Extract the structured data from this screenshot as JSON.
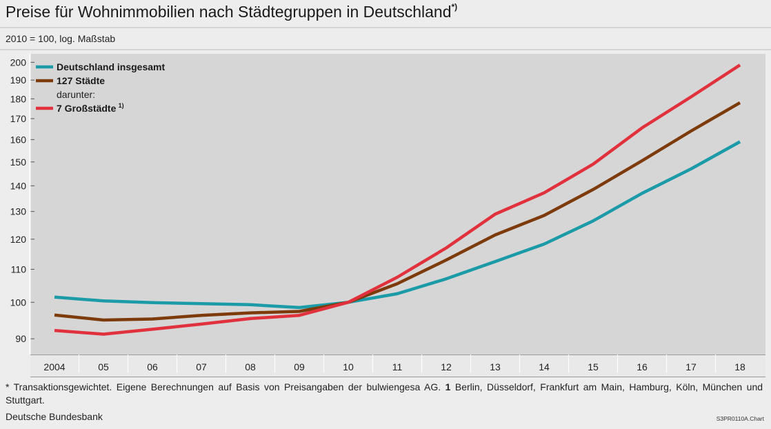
{
  "title": "Preise für Wohnimmobilien nach Städtegruppen in Deutschland",
  "title_marker": "*)",
  "subtitle": "2010 = 100, log. Maßstab",
  "chart_data": {
    "type": "line",
    "title": "Preise für Wohnimmobilien nach Städtegruppen in Deutschland",
    "ylabel": "2010 = 100, log. Maßstab",
    "yscale": "log",
    "ylim": [
      86,
      205
    ],
    "yticks": [
      90,
      100,
      110,
      120,
      130,
      140,
      150,
      160,
      170,
      180,
      190,
      200
    ],
    "x": [
      2004,
      2005,
      2006,
      2007,
      2008,
      2009,
      2010,
      2011,
      2012,
      2013,
      2014,
      2015,
      2016,
      2017,
      2018
    ],
    "xtick_labels": [
      "2004",
      "05",
      "06",
      "07",
      "08",
      "09",
      "10",
      "11",
      "12",
      "13",
      "14",
      "15",
      "16",
      "17",
      "18"
    ],
    "vertical_separators_after": [
      "2007",
      "2012",
      "2017"
    ],
    "grid": false,
    "legend_position": "top-left",
    "legend_subheading": "darunter:",
    "series": [
      {
        "name": "Deutschland insgesamt",
        "color": "#1b9aa8",
        "values": [
          101.5,
          100.4,
          99.9,
          99.6,
          99.3,
          98.5,
          100,
          102.5,
          107,
          112.5,
          118.3,
          126.5,
          137,
          147,
          159
        ]
      },
      {
        "name": "127 Städte",
        "color": "#7d3b0c",
        "values": [
          96.4,
          95.0,
          95.3,
          96.3,
          97.0,
          97.4,
          100,
          105.5,
          113,
          121.5,
          128.5,
          138.5,
          150.5,
          164,
          178
        ]
      },
      {
        "name": "7 Großstädte",
        "name_marker": "1)",
        "color": "#e0313c",
        "values": [
          92.2,
          91.2,
          92.5,
          93.9,
          95.4,
          96.3,
          100,
          107.5,
          117,
          129,
          137.2,
          149,
          165.5,
          181,
          198.5
        ]
      }
    ]
  },
  "footnote": {
    "star_part": "* Transaktionsgewichtet. Eigene Berechnungen auf Basis von Preisangaben der bulwiengesa AG.",
    "ref_number": "1",
    "ref_text": "Berlin, Düsseldorf, Frankfurt am Main, Hamburg, Köln, München und Stuttgart."
  },
  "source": "Deutsche Bundesbank",
  "chart_id": "S3PR0110A.Chart"
}
